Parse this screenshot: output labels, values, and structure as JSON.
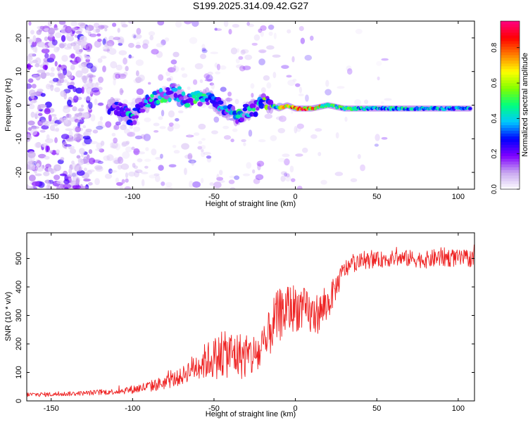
{
  "chart_data": [
    {
      "type": "heatmap",
      "title": "S199.2025.314.09.42.G27",
      "xlabel": "Height of straight line (km)",
      "ylabel": "Frequency (Hz)",
      "xlim": [
        -165,
        110
      ],
      "ylim": [
        -25,
        25
      ],
      "xticks": [
        -150,
        -100,
        -50,
        0,
        50,
        100
      ],
      "xtick_labels": [
        "-150",
        "-100",
        "-50",
        "0",
        "50",
        "100"
      ],
      "yticks": [
        -20,
        -10,
        0,
        10,
        20
      ],
      "ytick_labels": [
        "-20",
        "-10",
        "0",
        "10",
        "20"
      ],
      "colorbar": {
        "label": "Normalized spectral amplitude",
        "range": [
          0.0,
          0.95
        ],
        "ticks": [
          0.0,
          0.2,
          0.4,
          0.6,
          0.8
        ],
        "tick_labels": [
          "0.0",
          "0.2",
          "0.4",
          "0.6",
          "0.8"
        ],
        "colors": [
          "#ffffff",
          "#c8a8f0",
          "#8000ff",
          "#0000ff",
          "#00c8ff",
          "#00ff80",
          "#80ff00",
          "#ffff00",
          "#ff8000",
          "#ff0000",
          "#ff0080"
        ]
      },
      "ridge": {
        "x": [
          -115,
          -105,
          -100,
          -95,
          -90,
          -85,
          -80,
          -75,
          -70,
          -65,
          -60,
          -55,
          -50,
          -45,
          -40,
          -35,
          -30,
          -25,
          -20,
          -15,
          -10,
          -5,
          0,
          10,
          20,
          30,
          50,
          70,
          90,
          108
        ],
        "y": [
          0,
          -2,
          -4,
          -1,
          1,
          2,
          3,
          4,
          3,
          1,
          2,
          3,
          1,
          -1,
          -2,
          -4,
          -2,
          -1,
          1,
          0,
          -1,
          0,
          -1,
          -1,
          0,
          -1,
          -1,
          -1,
          -1,
          -1
        ],
        "amplitude": [
          0.3,
          0.35,
          0.45,
          0.35,
          0.4,
          0.45,
          0.5,
          0.5,
          0.45,
          0.4,
          0.5,
          0.45,
          0.4,
          0.35,
          0.4,
          0.45,
          0.4,
          0.45,
          0.5,
          0.55,
          0.6,
          0.7,
          0.9,
          0.85,
          0.6,
          0.5,
          0.45,
          0.45,
          0.4,
          0.4
        ],
        "description_note": "Signal concentrated near 0 Hz for heights above about -20 km; scattered low-amplitude noise below -120 km"
      }
    },
    {
      "type": "line",
      "title": "",
      "xlabel": "Height of straight line (km)",
      "ylabel": "SNR (10 * v/v)",
      "xlim": [
        -165,
        110
      ],
      "ylim": [
        0,
        590
      ],
      "xticks": [
        -150,
        -100,
        -50,
        0,
        50,
        100
      ],
      "xtick_labels": [
        "-150",
        "-100",
        "-50",
        "0",
        "50",
        "100"
      ],
      "yticks": [
        0,
        100,
        200,
        300,
        400,
        500
      ],
      "ytick_labels": [
        "0",
        "100",
        "200",
        "300",
        "400",
        "500"
      ],
      "color": "#ee2222",
      "x": [
        -165,
        -150,
        -140,
        -130,
        -120,
        -110,
        -100,
        -95,
        -90,
        -80,
        -70,
        -65,
        -60,
        -55,
        -50,
        -45,
        -40,
        -35,
        -30,
        -25,
        -20,
        -17,
        -15,
        -10,
        -5,
        0,
        5,
        10,
        15,
        20,
        25,
        30,
        35,
        40,
        50,
        60,
        70,
        80,
        90,
        100,
        108
      ],
      "y": [
        22,
        23,
        25,
        27,
        30,
        33,
        40,
        45,
        50,
        65,
        85,
        110,
        125,
        140,
        150,
        160,
        165,
        160,
        155,
        160,
        175,
        205,
        260,
        300,
        320,
        330,
        320,
        300,
        310,
        340,
        400,
        460,
        480,
        490,
        495,
        500,
        500,
        495,
        505,
        500,
        500
      ],
      "spread": [
        8,
        8,
        8,
        8,
        10,
        10,
        15,
        18,
        20,
        25,
        30,
        40,
        55,
        65,
        75,
        80,
        85,
        85,
        80,
        80,
        85,
        90,
        95,
        95,
        90,
        85,
        80,
        75,
        70,
        60,
        45,
        35,
        30,
        28,
        28,
        28,
        30,
        30,
        35,
        30,
        30
      ]
    }
  ]
}
